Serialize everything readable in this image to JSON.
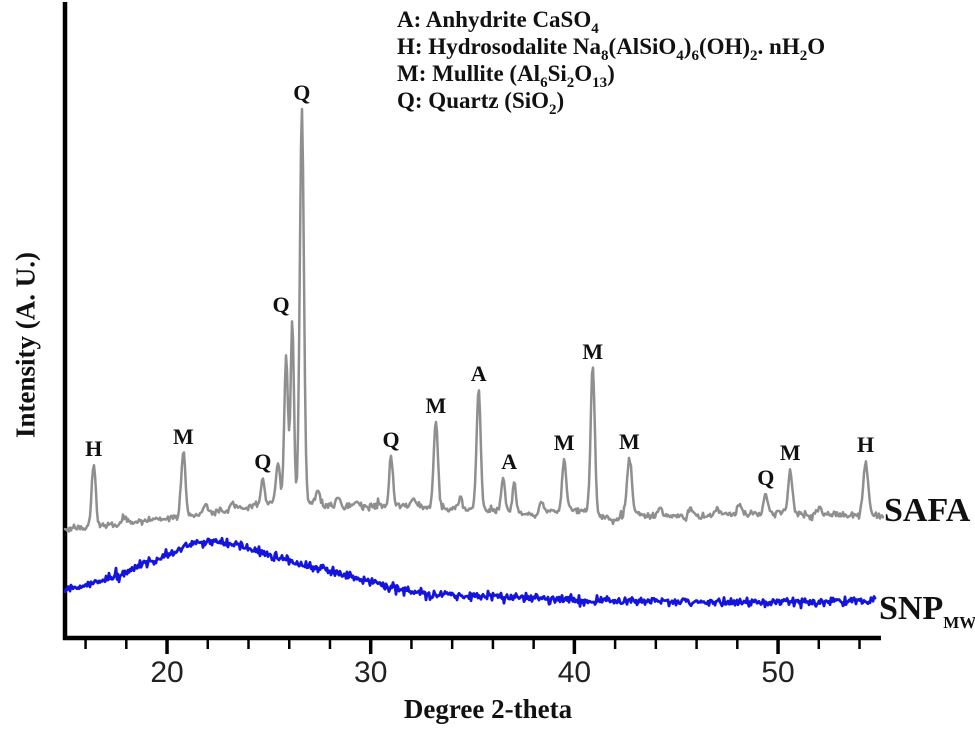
{
  "figure": {
    "background": "#ffffff",
    "axis_color": "#000000"
  },
  "chart_data": {
    "type": "line",
    "title": "",
    "xlabel": "Degree 2-theta",
    "ylabel": "Intensity (A. U.)",
    "grid": false,
    "x_axis": {
      "range": [
        15,
        55.2
      ],
      "major_ticks": [
        20,
        30,
        40,
        50
      ],
      "minor_tick_start": 16,
      "minor_tick_step": 2,
      "minor_tick_end": 54
    },
    "y_axis": {
      "unit": "arbitrary units",
      "ticks_shown": false
    },
    "legend": {
      "lines": [
        {
          "text": "A: Anhydrite CaSO₄",
          "parts": [
            [
              "A: Anhydrite CaSO",
              0
            ],
            [
              "4",
              1
            ]
          ]
        },
        {
          "text": "H: Hydrosodalite Na₈(AlSiO₄)₆(OH)₂. nH₂O",
          "parts": [
            [
              "H: Hydrosodalite Na",
              0
            ],
            [
              "8",
              1
            ],
            [
              "(AlSiO",
              0
            ],
            [
              "4",
              1
            ],
            [
              ")",
              0
            ],
            [
              "6",
              1
            ],
            [
              "(OH)",
              0
            ],
            [
              "2",
              1
            ],
            [
              ". nH",
              0
            ],
            [
              "2",
              1
            ],
            [
              "O",
              0
            ]
          ]
        },
        {
          "text": "M: Mullite (Al₆Si₂O₁₃)",
          "parts": [
            [
              "M: Mullite (Al",
              0
            ],
            [
              "6",
              1
            ],
            [
              "Si",
              0
            ],
            [
              "2",
              1
            ],
            [
              "O",
              0
            ],
            [
              "13",
              1
            ],
            [
              ")",
              0
            ]
          ]
        },
        {
          "text": "Q: Quartz (SiO₂)",
          "parts": [
            [
              "Q: Quartz (SiO",
              0
            ],
            [
              "2",
              1
            ],
            [
              ")",
              0
            ]
          ]
        }
      ]
    },
    "series": [
      {
        "name": "SAFA",
        "color": "#8f8f8f",
        "x_end": 55.2,
        "noise_au": 4.5,
        "baseline_anchors": [
          [
            15,
            530
          ],
          [
            16,
            528
          ],
          [
            17,
            526
          ],
          [
            18,
            524
          ],
          [
            19,
            521
          ],
          [
            20,
            518
          ],
          [
            21,
            516
          ],
          [
            22,
            513
          ],
          [
            23,
            510
          ],
          [
            24,
            506
          ],
          [
            25,
            503
          ],
          [
            26,
            500
          ],
          [
            27,
            503
          ],
          [
            28,
            506
          ],
          [
            29,
            507
          ],
          [
            30,
            506
          ],
          [
            31,
            506
          ],
          [
            32,
            507
          ],
          [
            33,
            508
          ],
          [
            34,
            509
          ],
          [
            35,
            509
          ],
          [
            36,
            511
          ],
          [
            37,
            513
          ],
          [
            38,
            515
          ],
          [
            39,
            512
          ],
          [
            40,
            510
          ],
          [
            41,
            512
          ],
          [
            41.9,
            521
          ],
          [
            42.7,
            513
          ],
          [
            43.5,
            516
          ],
          [
            45,
            517
          ],
          [
            46.5,
            516
          ],
          [
            48,
            514
          ],
          [
            49.5,
            513
          ],
          [
            50.5,
            512
          ],
          [
            51.5,
            515
          ],
          [
            53,
            515
          ],
          [
            54.5,
            515
          ],
          [
            55.2,
            517
          ]
        ],
        "peaks": [
          {
            "two_theta": 16.4,
            "intensity": 62,
            "width": 0.1,
            "phase": "H"
          },
          {
            "two_theta": 17.9,
            "intensity": 8,
            "width": 0.12,
            "phase": ""
          },
          {
            "two_theta": 20.8,
            "intensity": 66,
            "width": 0.1,
            "phase": "M"
          },
          {
            "two_theta": 21.9,
            "intensity": 8,
            "width": 0.1,
            "phase": ""
          },
          {
            "two_theta": 23.2,
            "intensity": 7,
            "width": 0.1,
            "phase": ""
          },
          {
            "two_theta": 24.7,
            "intensity": 25,
            "width": 0.09,
            "phase": "Q"
          },
          {
            "two_theta": 25.45,
            "intensity": 40,
            "width": 0.1,
            "phase": "Q"
          },
          {
            "two_theta": 25.85,
            "intensity": 145,
            "width": 0.09,
            "phase": "Q"
          },
          {
            "two_theta": 26.15,
            "intensity": 180,
            "width": 0.08,
            "phase": "Q"
          },
          {
            "two_theta": 26.62,
            "intensity": 390,
            "width": 0.1,
            "phase": "Q"
          },
          {
            "two_theta": 27.4,
            "intensity": 14,
            "width": 0.1,
            "phase": ""
          },
          {
            "two_theta": 28.4,
            "intensity": 8,
            "width": 0.12,
            "phase": ""
          },
          {
            "two_theta": 29.3,
            "intensity": 7,
            "width": 0.1,
            "phase": ""
          },
          {
            "two_theta": 31.0,
            "intensity": 50,
            "width": 0.09,
            "phase": "Q"
          },
          {
            "two_theta": 32.1,
            "intensity": 8,
            "width": 0.1,
            "phase": ""
          },
          {
            "two_theta": 33.2,
            "intensity": 88,
            "width": 0.1,
            "phase": "M"
          },
          {
            "two_theta": 34.4,
            "intensity": 12,
            "width": 0.1,
            "phase": ""
          },
          {
            "two_theta": 35.3,
            "intensity": 121,
            "width": 0.1,
            "phase": "A"
          },
          {
            "two_theta": 36.5,
            "intensity": 34,
            "width": 0.09,
            "phase": "A"
          },
          {
            "two_theta": 37.05,
            "intensity": 30,
            "width": 0.09,
            "phase": "A"
          },
          {
            "two_theta": 38.4,
            "intensity": 12,
            "width": 0.1,
            "phase": ""
          },
          {
            "two_theta": 39.5,
            "intensity": 52,
            "width": 0.1,
            "phase": "M"
          },
          {
            "two_theta": 40.9,
            "intensity": 146,
            "width": 0.1,
            "phase": "M"
          },
          {
            "two_theta": 42.7,
            "intensity": 55,
            "width": 0.12,
            "phase": "M"
          },
          {
            "two_theta": 44.2,
            "intensity": 7,
            "width": 0.1,
            "phase": ""
          },
          {
            "two_theta": 45.7,
            "intensity": 8,
            "width": 0.1,
            "phase": ""
          },
          {
            "two_theta": 47.0,
            "intensity": 7,
            "width": 0.1,
            "phase": ""
          },
          {
            "two_theta": 48.1,
            "intensity": 10,
            "width": 0.1,
            "phase": ""
          },
          {
            "two_theta": 49.4,
            "intensity": 20,
            "width": 0.09,
            "phase": "Q"
          },
          {
            "two_theta": 50.6,
            "intensity": 40,
            "width": 0.1,
            "phase": "M"
          },
          {
            "two_theta": 52.0,
            "intensity": 8,
            "width": 0.1,
            "phase": ""
          },
          {
            "two_theta": 54.3,
            "intensity": 52,
            "width": 0.12,
            "phase": "H"
          }
        ],
        "peak_labels": [
          {
            "text": "H",
            "two_theta": 16.4
          },
          {
            "text": "M",
            "two_theta": 20.8
          },
          {
            "text": "Q",
            "two_theta": 24.7
          },
          {
            "text": "Q",
            "two_theta": 25.6
          },
          {
            "text": "Q",
            "two_theta": 26.62
          },
          {
            "text": "Q",
            "two_theta": 31.0
          },
          {
            "text": "M",
            "two_theta": 33.2
          },
          {
            "text": "A",
            "two_theta": 35.3
          },
          {
            "text": "A",
            "two_theta": 36.8
          },
          {
            "text": "M",
            "two_theta": 39.5
          },
          {
            "text": "M",
            "two_theta": 40.9
          },
          {
            "text": "M",
            "two_theta": 42.7
          },
          {
            "text": "Q",
            "two_theta": 49.4
          },
          {
            "text": "M",
            "two_theta": 50.6
          },
          {
            "text": "H",
            "two_theta": 54.3
          }
        ]
      },
      {
        "name": "SNP",
        "name_subscript": "MW",
        "color": "#1414dc",
        "x_end": 54.8,
        "noise_au": 6,
        "amorphous_hump_center": 22,
        "profile_anchors": [
          [
            15,
            589
          ],
          [
            16,
            586
          ],
          [
            17,
            580
          ],
          [
            18,
            572
          ],
          [
            19,
            563
          ],
          [
            20,
            554
          ],
          [
            21,
            546
          ],
          [
            21.8,
            542
          ],
          [
            22.6,
            541
          ],
          [
            23.4,
            545
          ],
          [
            24.5,
            552
          ],
          [
            25.5,
            558
          ],
          [
            27,
            566
          ],
          [
            28.5,
            574
          ],
          [
            29.8,
            581
          ],
          [
            30.8,
            587
          ],
          [
            31.8,
            591
          ],
          [
            33,
            594
          ],
          [
            34.5,
            596
          ],
          [
            36,
            597
          ],
          [
            38,
            598
          ],
          [
            40,
            600
          ],
          [
            42,
            601
          ],
          [
            44,
            601
          ],
          [
            46,
            602
          ],
          [
            48,
            602
          ],
          [
            50,
            602
          ],
          [
            52,
            602
          ],
          [
            54,
            601
          ],
          [
            54.8,
            600
          ]
        ],
        "peaks": [],
        "peak_labels": []
      }
    ]
  }
}
